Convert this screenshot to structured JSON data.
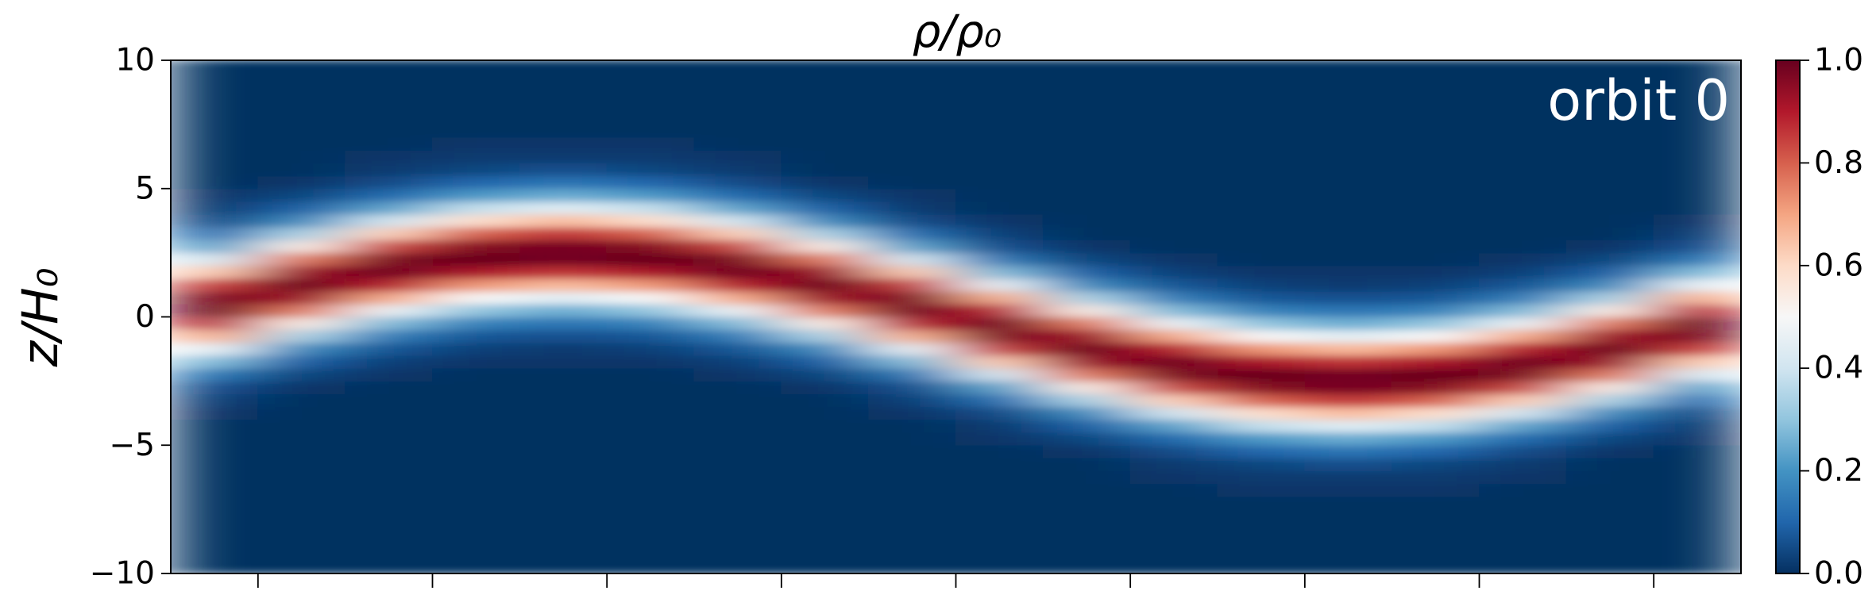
{
  "chart_data": {
    "type": "heatmap",
    "title": "ρ/ρ₀",
    "y_label": "z/H₀",
    "annotation": "orbit 0",
    "cmap": "RdBu_r",
    "xlim": [
      0,
      9
    ],
    "xticks": [
      0.5,
      1.5,
      2.5,
      3.5,
      4.5,
      5.5,
      6.5,
      7.5,
      8.5
    ],
    "ylim": [
      -10,
      10
    ],
    "yticks": [
      {
        "value": -10,
        "label": "−10"
      },
      {
        "value": -5,
        "label": "−5"
      },
      0,
      5,
      10
    ],
    "clim": [
      0,
      1
    ],
    "cticks": [
      {
        "value": 0,
        "label": "0.0"
      },
      {
        "value": 0.2,
        "label": "0.2"
      },
      {
        "value": 0.4,
        "label": "0.4"
      },
      {
        "value": 0.6,
        "label": "0.6"
      },
      {
        "value": 0.8,
        "label": "0.8"
      },
      {
        "value": 1,
        "label": "1.0"
      }
    ],
    "x": [
      0.25,
      0.75,
      1.25,
      1.75,
      2.25,
      2.75,
      3.25,
      3.75,
      4.25,
      4.75,
      5.25,
      5.75,
      6.25,
      6.75,
      7.25,
      7.75,
      8.25,
      8.75
    ],
    "y": [
      -9.75,
      -9.25,
      -8.75,
      -8.25,
      -7.75,
      -7.25,
      -6.75,
      -6.25,
      -5.75,
      -5.25,
      -4.75,
      -4.25,
      -3.75,
      -3.25,
      -2.75,
      -2.25,
      -1.75,
      -1.25,
      -0.75,
      -0.25,
      0.25,
      0.75,
      1.25,
      1.75,
      2.25,
      2.75,
      3.25,
      3.75,
      4.25,
      4.75,
      5.25,
      5.75,
      6.25,
      6.75,
      7.25,
      7.75,
      8.25,
      8.75,
      9.25,
      9.75
    ],
    "values": [
      [
        0,
        0,
        0,
        0,
        0,
        0,
        0,
        0,
        0,
        0,
        0,
        0,
        0.01,
        0.03,
        0.06,
        0.14,
        0.28,
        0.46,
        0.68,
        0.88,
        0.99,
        0.97,
        0.84,
        0.63,
        0.41,
        0.23,
        0.12,
        0.05,
        0.02,
        0.01,
        0,
        0,
        0,
        0,
        0,
        0,
        0,
        0,
        0,
        0
      ],
      [
        0,
        0,
        0,
        0,
        0,
        0,
        0,
        0,
        0,
        0,
        0,
        0,
        0,
        0,
        0.01,
        0.04,
        0.09,
        0.18,
        0.34,
        0.54,
        0.76,
        0.93,
        1,
        0.93,
        0.76,
        0.54,
        0.34,
        0.18,
        0.09,
        0.04,
        0.01,
        0,
        0,
        0,
        0,
        0,
        0,
        0,
        0,
        0
      ],
      [
        0,
        0,
        0,
        0,
        0,
        0,
        0,
        0,
        0,
        0,
        0,
        0,
        0,
        0,
        0,
        0.01,
        0.03,
        0.07,
        0.15,
        0.28,
        0.47,
        0.69,
        0.89,
        0.99,
        0.97,
        0.83,
        0.62,
        0.4,
        0.23,
        0.11,
        0.05,
        0.02,
        0.01,
        0,
        0,
        0,
        0,
        0,
        0,
        0
      ],
      [
        0,
        0,
        0,
        0,
        0,
        0,
        0,
        0,
        0,
        0,
        0,
        0,
        0,
        0,
        0,
        0,
        0.01,
        0.03,
        0.07,
        0.16,
        0.3,
        0.5,
        0.72,
        0.91,
        1,
        0.96,
        0.8,
        0.59,
        0.38,
        0.21,
        0.1,
        0.04,
        0.02,
        0.01,
        0,
        0,
        0,
        0,
        0,
        0
      ],
      [
        0,
        0,
        0,
        0,
        0,
        0,
        0,
        0,
        0,
        0,
        0,
        0,
        0,
        0,
        0,
        0,
        0.01,
        0.02,
        0.06,
        0.13,
        0.25,
        0.44,
        0.66,
        0.86,
        0.98,
        0.98,
        0.86,
        0.66,
        0.44,
        0.25,
        0.13,
        0.06,
        0.02,
        0.01,
        0,
        0,
        0,
        0,
        0,
        0
      ],
      [
        0,
        0,
        0,
        0,
        0,
        0,
        0,
        0,
        0,
        0,
        0,
        0,
        0,
        0,
        0,
        0,
        0.01,
        0.03,
        0.07,
        0.16,
        0.3,
        0.5,
        0.72,
        0.91,
        1,
        0.96,
        0.8,
        0.59,
        0.38,
        0.21,
        0.1,
        0.04,
        0.02,
        0.01,
        0,
        0,
        0,
        0,
        0,
        0
      ],
      [
        0,
        0,
        0,
        0,
        0,
        0,
        0,
        0,
        0,
        0,
        0,
        0,
        0,
        0,
        0,
        0.01,
        0.03,
        0.07,
        0.15,
        0.28,
        0.47,
        0.69,
        0.89,
        0.99,
        0.97,
        0.83,
        0.62,
        0.4,
        0.23,
        0.11,
        0.05,
        0.02,
        0.01,
        0,
        0,
        0,
        0,
        0,
        0,
        0
      ],
      [
        0,
        0,
        0,
        0,
        0,
        0,
        0,
        0,
        0,
        0,
        0,
        0,
        0,
        0,
        0.01,
        0.04,
        0.09,
        0.18,
        0.34,
        0.54,
        0.76,
        0.93,
        1,
        0.93,
        0.76,
        0.54,
        0.34,
        0.18,
        0.09,
        0.04,
        0.01,
        0,
        0,
        0,
        0,
        0,
        0,
        0,
        0,
        0
      ],
      [
        0,
        0,
        0,
        0,
        0,
        0,
        0,
        0,
        0,
        0,
        0,
        0,
        0.01,
        0.03,
        0.06,
        0.14,
        0.28,
        0.46,
        0.68,
        0.88,
        0.99,
        0.97,
        0.84,
        0.63,
        0.41,
        0.23,
        0.12,
        0.05,
        0.02,
        0.01,
        0,
        0,
        0,
        0,
        0,
        0,
        0,
        0,
        0,
        0
      ],
      [
        0,
        0,
        0,
        0,
        0,
        0,
        0,
        0,
        0,
        0,
        0.01,
        0.02,
        0.05,
        0.12,
        0.23,
        0.41,
        0.63,
        0.84,
        0.97,
        0.99,
        0.88,
        0.68,
        0.46,
        0.28,
        0.14,
        0.06,
        0.03,
        0.01,
        0,
        0,
        0,
        0,
        0,
        0,
        0,
        0,
        0,
        0,
        0,
        0
      ],
      [
        0,
        0,
        0,
        0,
        0,
        0,
        0,
        0,
        0,
        0.01,
        0.04,
        0.09,
        0.18,
        0.34,
        0.54,
        0.76,
        0.93,
        1,
        0.93,
        0.76,
        0.54,
        0.34,
        0.18,
        0.09,
        0.04,
        0.01,
        0,
        0,
        0,
        0,
        0,
        0,
        0,
        0,
        0,
        0,
        0,
        0,
        0,
        0
      ],
      [
        0,
        0,
        0,
        0,
        0,
        0,
        0,
        0.01,
        0.02,
        0.05,
        0.11,
        0.23,
        0.4,
        0.62,
        0.83,
        0.97,
        0.99,
        0.89,
        0.69,
        0.47,
        0.28,
        0.15,
        0.07,
        0.03,
        0.01,
        0,
        0,
        0,
        0,
        0,
        0,
        0,
        0,
        0,
        0,
        0,
        0,
        0,
        0,
        0
      ],
      [
        0,
        0,
        0,
        0,
        0,
        0,
        0.01,
        0.02,
        0.04,
        0.1,
        0.21,
        0.38,
        0.59,
        0.8,
        0.96,
        1,
        0.91,
        0.72,
        0.5,
        0.3,
        0.16,
        0.07,
        0.03,
        0.01,
        0,
        0,
        0,
        0,
        0,
        0,
        0,
        0,
        0,
        0,
        0,
        0,
        0,
        0,
        0,
        0
      ],
      [
        0,
        0,
        0,
        0,
        0,
        0,
        0.01,
        0.02,
        0.06,
        0.13,
        0.25,
        0.44,
        0.66,
        0.86,
        0.98,
        0.98,
        0.86,
        0.66,
        0.44,
        0.25,
        0.13,
        0.06,
        0.02,
        0.01,
        0,
        0,
        0,
        0,
        0,
        0,
        0,
        0,
        0,
        0,
        0,
        0,
        0,
        0,
        0,
        0
      ],
      [
        0,
        0,
        0,
        0,
        0,
        0,
        0.01,
        0.02,
        0.04,
        0.1,
        0.21,
        0.38,
        0.59,
        0.8,
        0.96,
        1,
        0.91,
        0.72,
        0.5,
        0.3,
        0.16,
        0.07,
        0.03,
        0.01,
        0,
        0,
        0,
        0,
        0,
        0,
        0,
        0,
        0,
        0,
        0,
        0,
        0,
        0,
        0,
        0
      ],
      [
        0,
        0,
        0,
        0,
        0,
        0,
        0,
        0.01,
        0.02,
        0.05,
        0.11,
        0.23,
        0.4,
        0.62,
        0.83,
        0.97,
        0.99,
        0.89,
        0.69,
        0.47,
        0.28,
        0.15,
        0.07,
        0.03,
        0.01,
        0,
        0,
        0,
        0,
        0,
        0,
        0,
        0,
        0,
        0,
        0,
        0,
        0,
        0,
        0
      ],
      [
        0,
        0,
        0,
        0,
        0,
        0,
        0,
        0,
        0,
        0.01,
        0.04,
        0.09,
        0.18,
        0.34,
        0.54,
        0.76,
        0.93,
        1,
        0.93,
        0.76,
        0.54,
        0.34,
        0.18,
        0.09,
        0.04,
        0.01,
        0,
        0,
        0,
        0,
        0,
        0,
        0,
        0,
        0,
        0,
        0,
        0,
        0,
        0
      ],
      [
        0,
        0,
        0,
        0,
        0,
        0,
        0,
        0,
        0,
        0,
        0.01,
        0.02,
        0.05,
        0.12,
        0.23,
        0.41,
        0.63,
        0.84,
        0.97,
        0.99,
        0.88,
        0.68,
        0.46,
        0.28,
        0.14,
        0.06,
        0.03,
        0.01,
        0,
        0,
        0,
        0,
        0,
        0,
        0,
        0,
        0,
        0,
        0,
        0
      ]
    ]
  }
}
